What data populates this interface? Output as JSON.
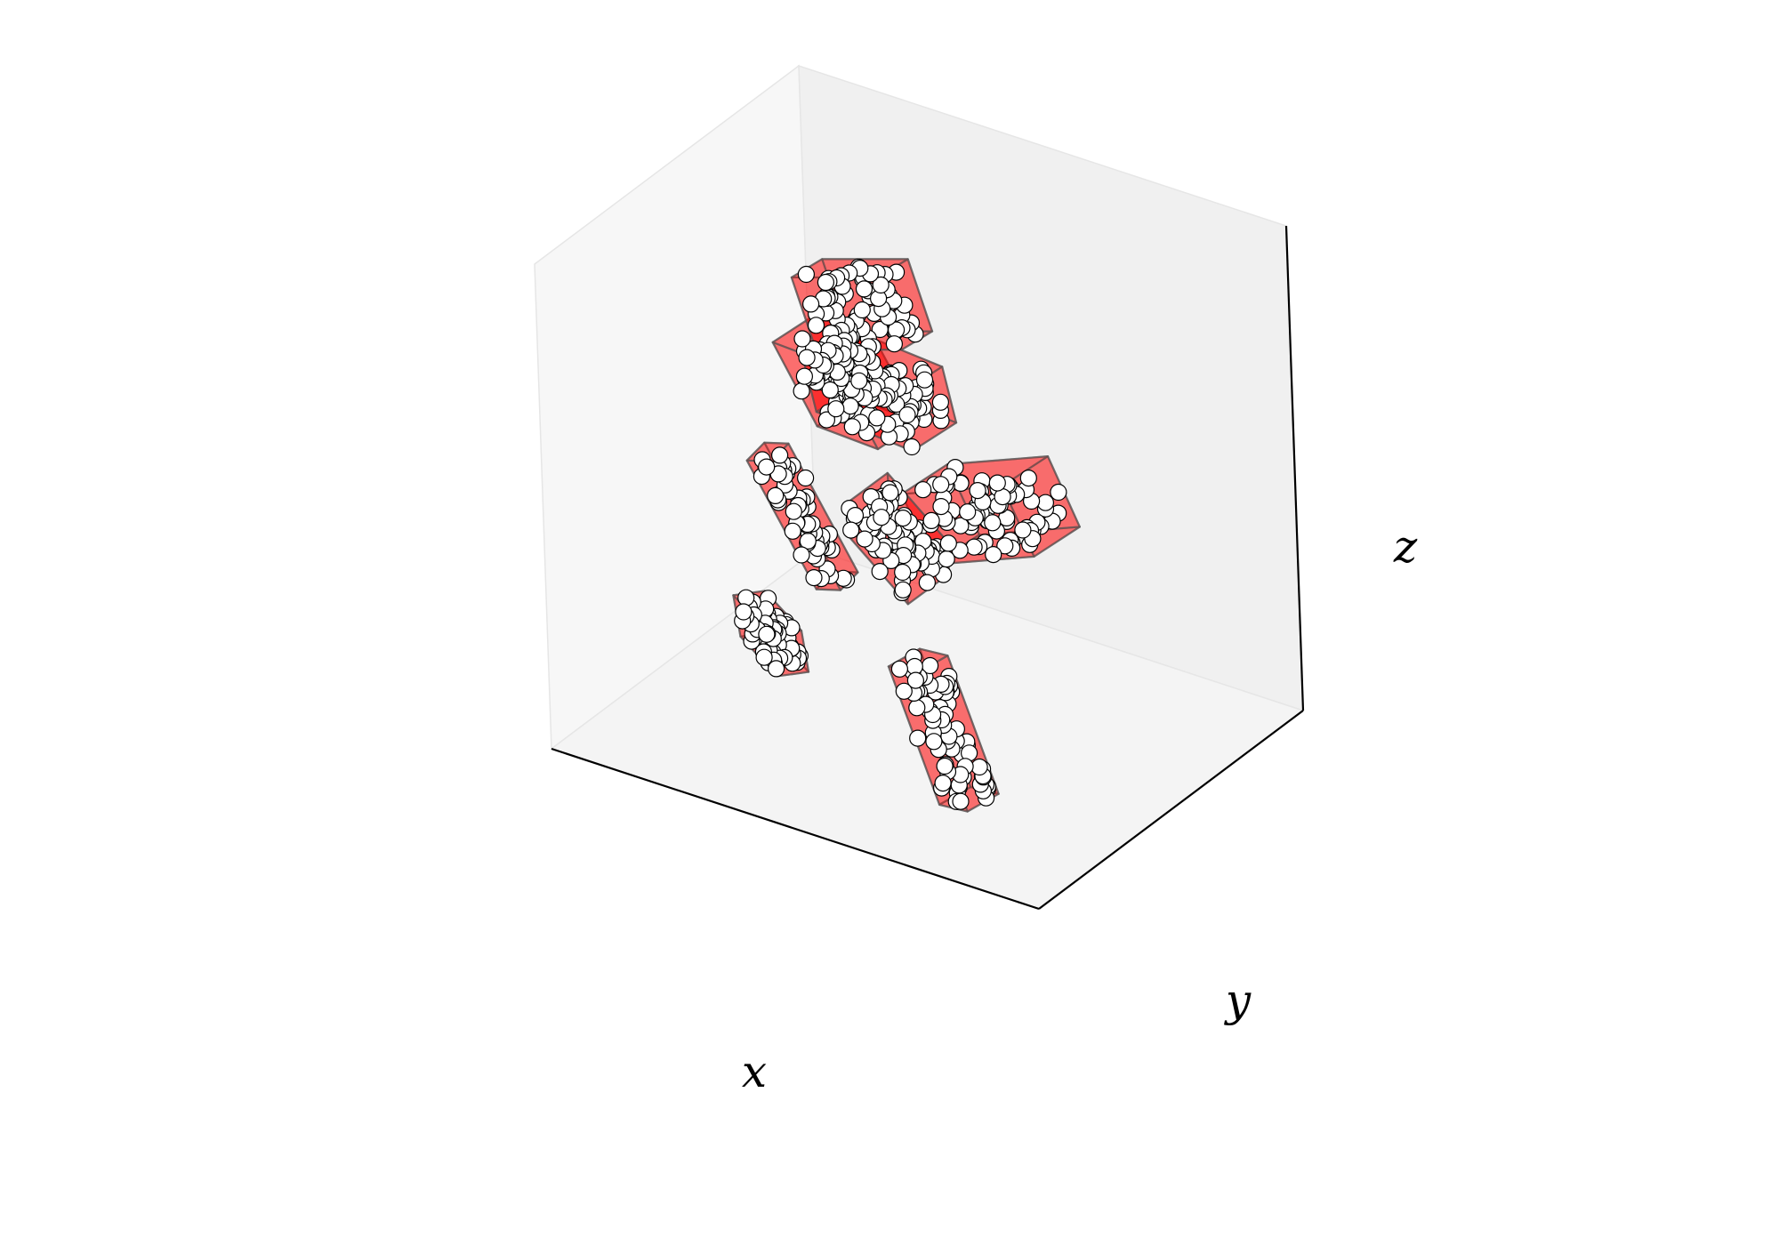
{
  "chart_data": {
    "type": "scatter",
    "projection": "3d",
    "xlabel": "x",
    "ylabel": "y",
    "zlabel": "z",
    "ticks": "none",
    "grid": false,
    "pane_color": "#f0f0f0",
    "box_color": "#ff0000",
    "box_alpha": 0.33,
    "point_color": "#ffffff",
    "point_edge_color": "#000000",
    "xlim": [
      0,
      1
    ],
    "ylim": [
      0,
      1
    ],
    "zlim": [
      0,
      1
    ],
    "oriented_boxes": [
      {
        "center": [
          0.52,
          0.28,
          0.8
        ],
        "half_extents": [
          0.11,
          0.05,
          0.09
        ],
        "angles_deg": [
          20,
          15,
          30
        ],
        "point_count": 90
      },
      {
        "center": [
          0.24,
          0.3,
          0.62
        ],
        "half_extents": [
          0.13,
          0.07,
          0.07
        ],
        "angles_deg": [
          5,
          25,
          10
        ],
        "point_count": 80
      },
      {
        "center": [
          0.48,
          0.38,
          0.45
        ],
        "half_extents": [
          0.1,
          0.05,
          0.08
        ],
        "angles_deg": [
          40,
          10,
          60
        ],
        "point_count": 90
      },
      {
        "center": [
          0.62,
          0.58,
          0.63
        ],
        "half_extents": [
          0.12,
          0.06,
          0.06
        ],
        "angles_deg": [
          10,
          5,
          15
        ],
        "point_count": 80
      },
      {
        "center": [
          0.74,
          0.74,
          0.7
        ],
        "half_extents": [
          0.1,
          0.05,
          0.07
        ],
        "angles_deg": [
          0,
          20,
          5
        ],
        "point_count": 70
      },
      {
        "center": [
          0.23,
          0.08,
          0.26
        ],
        "half_extents": [
          0.04,
          0.04,
          0.14
        ],
        "angles_deg": [
          10,
          15,
          20
        ],
        "point_count": 70
      },
      {
        "center": [
          0.66,
          0.22,
          0.26
        ],
        "half_extents": [
          0.12,
          0.03,
          0.04
        ],
        "angles_deg": [
          5,
          10,
          45
        ],
        "point_count": 80
      },
      {
        "center": [
          0.8,
          0.6,
          0.3
        ],
        "half_extents": [
          0.03,
          0.03,
          0.14
        ],
        "angles_deg": [
          15,
          20,
          10
        ],
        "point_count": 60
      }
    ]
  }
}
